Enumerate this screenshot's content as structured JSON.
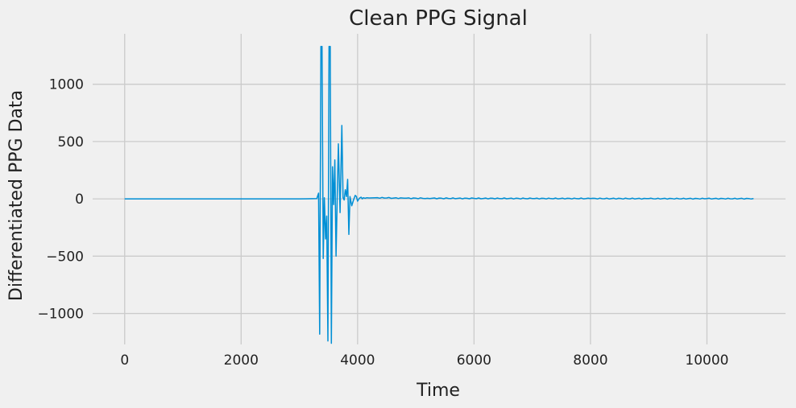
{
  "chart_data": {
    "type": "line",
    "title": "Clean PPG Signal",
    "xlabel": "Time",
    "ylabel": "Differentiated PPG Data",
    "xlim": [
      -550,
      11350
    ],
    "ylim": [
      -1270,
      1440
    ],
    "xticks": [
      0,
      2000,
      4000,
      6000,
      8000,
      10000
    ],
    "xtick_labels": [
      "0",
      "2000",
      "4000",
      "6000",
      "8000",
      "10000"
    ],
    "yticks": [
      -1000,
      -500,
      0,
      500,
      1000
    ],
    "ytick_labels": [
      "−1000",
      "−500",
      "0",
      "500",
      "1000"
    ],
    "grid": true,
    "line_color": "#008fd5",
    "background": "#f0f0f0",
    "series": [
      {
        "x": [
          0,
          1500,
          3000,
          3300,
          3330,
          3350,
          3370,
          3390,
          3410,
          3430,
          3450,
          3470,
          3490,
          3510,
          3530,
          3550,
          3570,
          3590,
          3610,
          3630,
          3650,
          3670,
          3700,
          3730,
          3750,
          3770,
          3790,
          3810,
          3830,
          3850,
          3870,
          3900,
          3930,
          3960,
          3980,
          4000,
          4030,
          4060,
          4080,
          4100,
          4130,
          4160,
          4200,
          4300,
          4500,
          4800,
          5200,
          6000,
          7000,
          8000,
          9000,
          10000,
          10800
        ],
        "y": [
          0,
          0,
          0,
          2,
          50,
          -1180,
          1330,
          1330,
          -520,
          10,
          -350,
          -150,
          -1240,
          1330,
          1330,
          -1260,
          280,
          -50,
          340,
          -500,
          0,
          480,
          -120,
          640,
          10,
          -10,
          80,
          20,
          170,
          -310,
          20,
          -60,
          -10,
          30,
          20,
          -20,
          5,
          15,
          0,
          10,
          5,
          10,
          8,
          10,
          8,
          6,
          5,
          4,
          3,
          3,
          2,
          2,
          2
        ]
      }
    ]
  }
}
